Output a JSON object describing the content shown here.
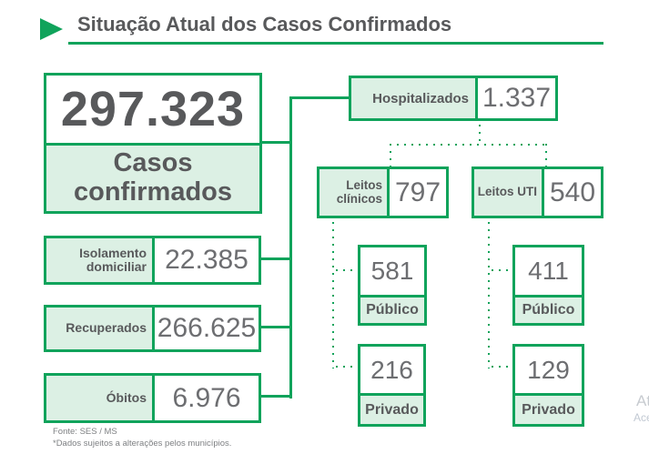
{
  "title": {
    "text": "Situação Atual dos Casos Confirmados"
  },
  "summary": {
    "value": "297.323",
    "label": "Casos confirmados"
  },
  "stats": [
    {
      "label": "Isolamento domiciliar",
      "value": "22.385"
    },
    {
      "label": "Recuperados",
      "value": "266.625"
    },
    {
      "label": "Óbitos",
      "value": "6.976"
    }
  ],
  "hospitalized": {
    "label": "Hospitalizados",
    "value": "1.337"
  },
  "beds": [
    {
      "label": "Leitos clínicos",
      "value": "797",
      "public": {
        "label": "Público",
        "value": "581"
      },
      "private": {
        "label": "Privado",
        "value": "216"
      }
    },
    {
      "label": "Leitos UTI",
      "value": "540",
      "public": {
        "label": "Público",
        "value": "411"
      },
      "private": {
        "label": "Privado",
        "value": "129"
      }
    }
  ],
  "footer": {
    "source": "Fonte: SES / MS",
    "note": "*Dados sujeitos a alterações pelos municípios."
  },
  "corner": {
    "line1": "At",
    "line2": "Ace"
  },
  "colors": {
    "green": "#10A35B",
    "light_green": "#DCF0E4",
    "text_dark": "#58595B",
    "text_num": "#6D6E71",
    "muted": "#7E8083",
    "corner": "#C7CBD0"
  }
}
